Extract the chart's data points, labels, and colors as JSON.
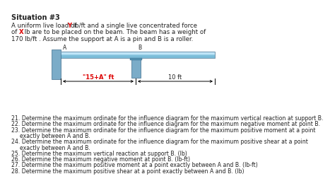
{
  "title": "Situation #3",
  "para_line1_pre": "A uniform live load of ",
  "para_line1_Y": "Y",
  "para_line1_post": " lb/ft and a single live concentrated force",
  "para_line2_pre": "of ",
  "para_line2_X": "X",
  "para_line2_post": " lb are to be placed on the beam. The beam has a weight of",
  "para_line3": "170 lb/ft . Assume the support at A is a pin and B is a roller.",
  "label_15A": "\"15+A\" ft",
  "label_10ft": "10 ft",
  "label_A": "A",
  "label_B": "B",
  "questions": [
    "21. Determine the maximum ordinate for the influence diagram for the maximum vertical reaction at support B.",
    "22. Determine the maximum ordinate for the influence diagram for the maximum negative moment at point B.",
    "23. Determine the maximum ordinate for the influence diagram for the maximum positive moment at a point",
    "exactly between A and B.",
    "24. Determine the maximum ordinate for the influence diagram for the maximum positive shear at a point",
    "exactly between A and B.",
    "25. Determine the maximum vertical reaction at support B. (lb)",
    "26. Determine the maximum negative moment at point B. (lb-ft)",
    "27. Determine the maximum positive moment at a point exactly between A and B. (lb-ft)",
    "28. Determine the maximum positive shear at a point exactly between A and B. (lb)"
  ],
  "q_indent": [
    false,
    false,
    false,
    true,
    false,
    true,
    false,
    false,
    false,
    false
  ],
  "beam_light": "#A8D8EE",
  "beam_mid": "#7BBDD9",
  "beam_highlight": "#C8EAFB",
  "wall_color": "#7BACC8",
  "support_color": "#7BACC8",
  "red_color": "#DD0000",
  "bg": "#FFFFFF",
  "text_color": "#222222"
}
